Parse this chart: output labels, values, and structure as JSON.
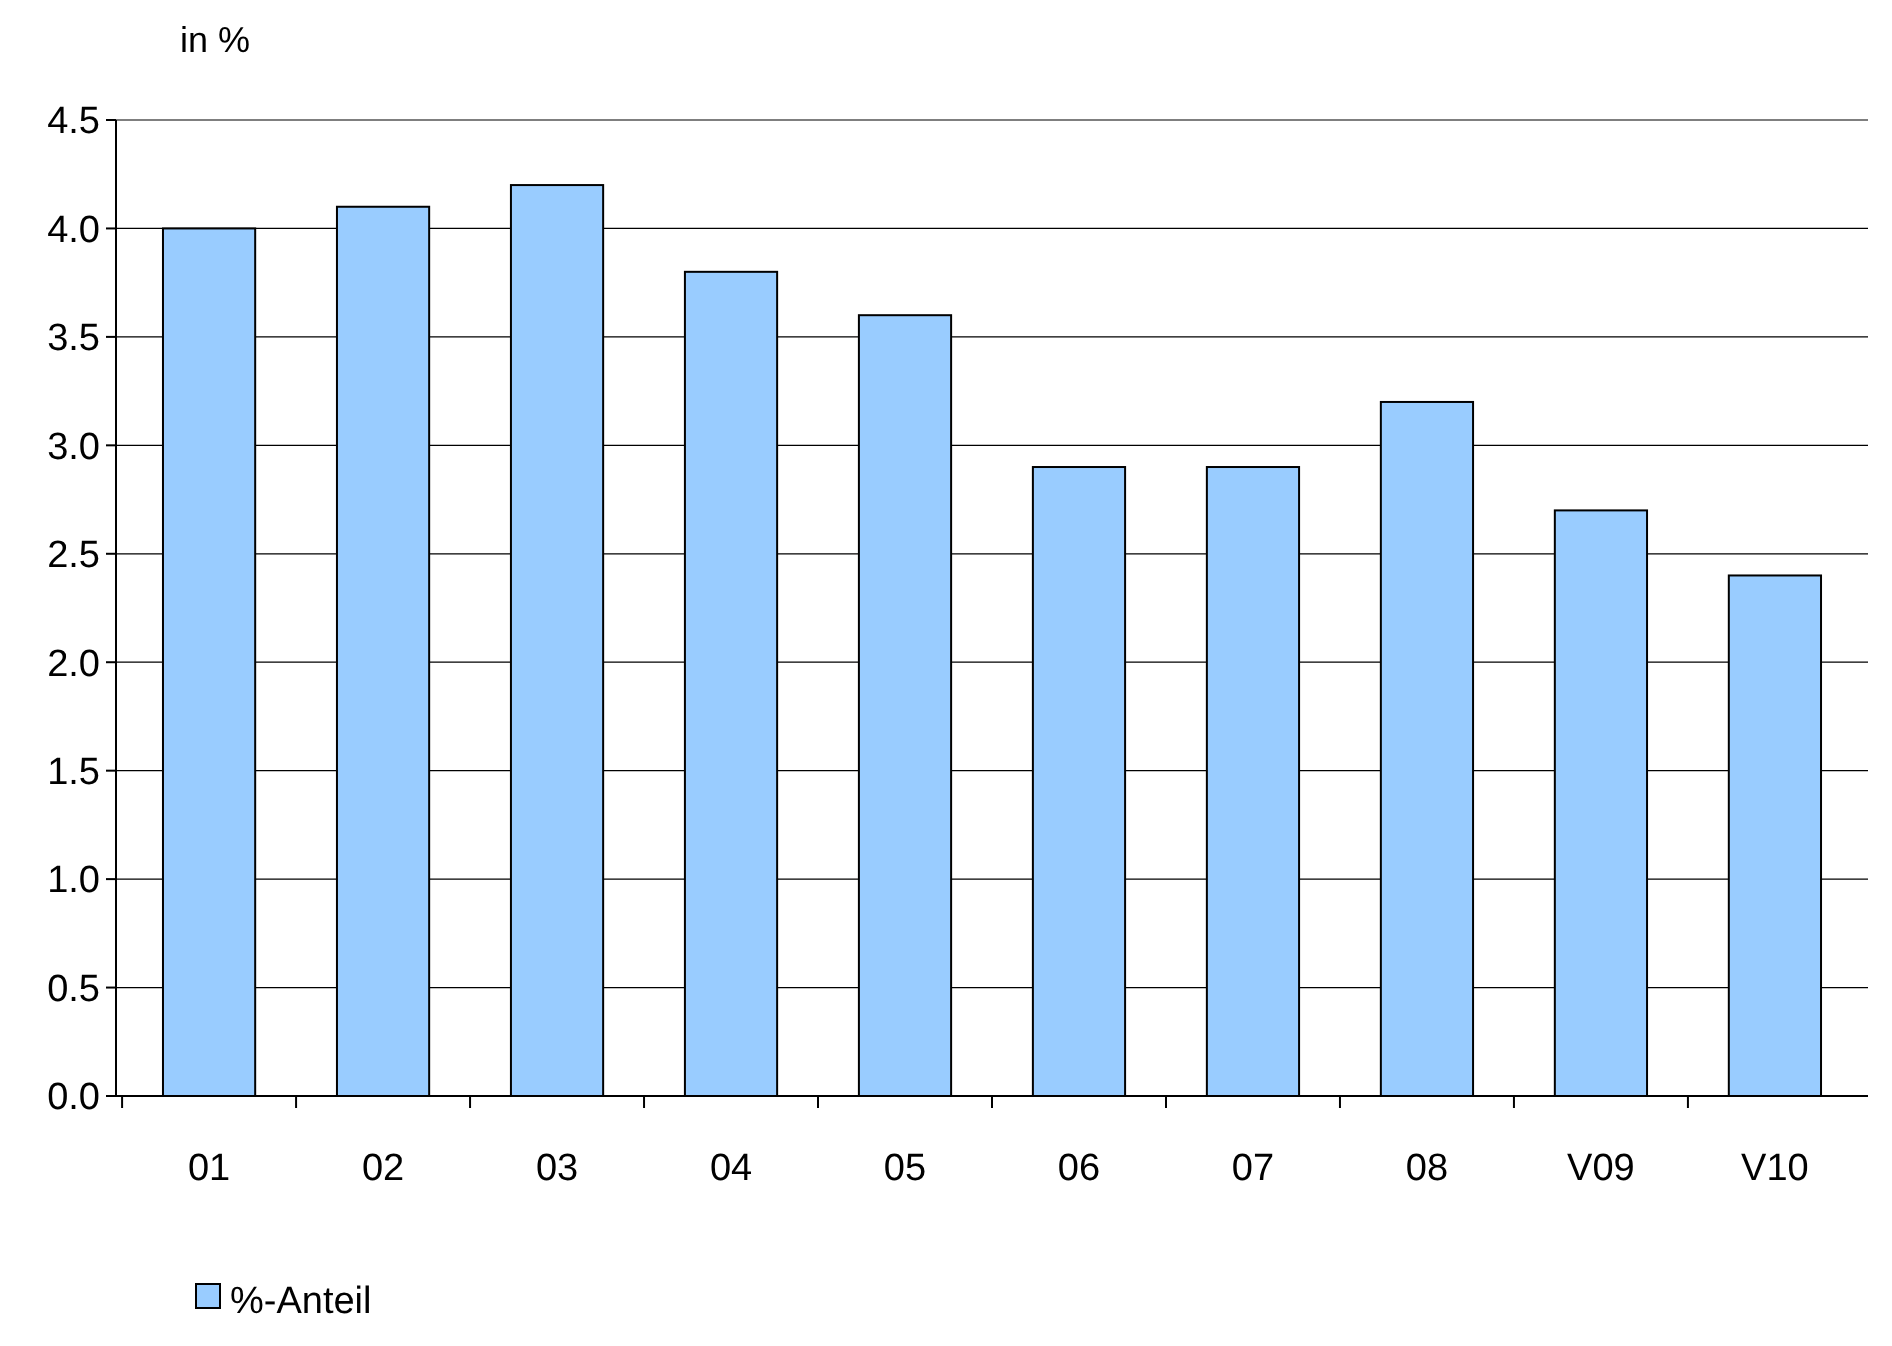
{
  "chart_data": {
    "type": "bar",
    "ylabel": "in %",
    "categories": [
      "01",
      "02",
      "03",
      "04",
      "05",
      "06",
      "07",
      "08",
      "V09",
      "V10"
    ],
    "series": [
      {
        "name": "%-Anteil",
        "color": "#99ccff",
        "values": [
          4.0,
          4.1,
          4.2,
          3.8,
          3.6,
          2.9,
          2.9,
          3.2,
          2.7,
          2.4
        ]
      }
    ],
    "ylim": [
      0,
      4.5
    ],
    "yticks": [
      {
        "value": 0,
        "label": "0.0"
      },
      {
        "value": 0.5,
        "label": "0.5"
      },
      {
        "value": 1,
        "label": "1.0"
      },
      {
        "value": 1.5,
        "label": "1.5"
      },
      {
        "value": 2,
        "label": "2.0"
      },
      {
        "value": 2.5,
        "label": "2.5"
      },
      {
        "value": 3,
        "label": "3.0"
      },
      {
        "value": 3.5,
        "label": "3.5"
      },
      {
        "value": 4,
        "label": "4.0"
      },
      {
        "value": 4.5,
        "label": "4.5"
      }
    ],
    "grid": "y",
    "legend": "bottom"
  }
}
